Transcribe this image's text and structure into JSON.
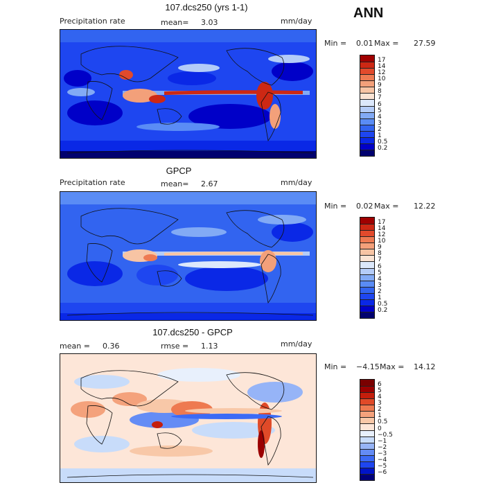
{
  "season": "ANN",
  "colors": {
    "abs_scale": [
      "#01016f",
      "#0000c8",
      "#0a28e6",
      "#1e46f0",
      "#3264f0",
      "#5a8cf5",
      "#82aaf5",
      "#b4ccf8",
      "#dce8fb",
      "#fbe4d4",
      "#f7c4a4",
      "#f3a07a",
      "#ee7a52",
      "#e24a2c",
      "#cd2814",
      "#a00000",
      "#780000"
    ],
    "diff_scale": [
      "#00007a",
      "#0014c8",
      "#1e46f0",
      "#3c6af5",
      "#648cf5",
      "#96b4f7",
      "#c8dcfa",
      "#e8f0fc",
      "#fde6d8",
      "#f8c8a8",
      "#f4a27c",
      "#ee7a50",
      "#e04a28",
      "#c41e0c",
      "#9b0000"
    ]
  },
  "panels": [
    {
      "id": "model",
      "title": "107.dcs250 (yrs 1-1)",
      "left_label": "Precipitation rate",
      "mean_label": "mean=",
      "mean_value": "3.03",
      "units": "mm/day",
      "min_label": "Min =",
      "min_value": "0.01",
      "max_label": "Max =",
      "max_value": "27.59",
      "colorbar_ticks": [
        "17",
        "14",
        "12",
        "10",
        "9",
        "8",
        "7",
        "6",
        "5",
        "4",
        "3",
        "2",
        "1",
        "0.5",
        "0.2"
      ]
    },
    {
      "id": "obs",
      "title": "GPCP",
      "left_label": "Precipitation rate",
      "mean_label": "mean=",
      "mean_value": "2.67",
      "units": "mm/day",
      "min_label": "Min =",
      "min_value": "0.02",
      "max_label": "Max =",
      "max_value": "12.22",
      "colorbar_ticks": [
        "17",
        "14",
        "12",
        "10",
        "9",
        "8",
        "7",
        "6",
        "5",
        "4",
        "3",
        "2",
        "1",
        "0.5",
        "0.2"
      ]
    },
    {
      "id": "diff",
      "title": "107.dcs250 - GPCP",
      "mean_label": "mean =",
      "mean_value": "0.36",
      "rmse_label": "rmse =",
      "rmse_value": "1.13",
      "units": "mm/day",
      "min_label": "Min =",
      "min_value": "−4.15",
      "max_label": "Max =",
      "max_value": "14.12",
      "colorbar_ticks": [
        "6",
        "5",
        "4",
        "3",
        "2",
        "1",
        "0.5",
        "0",
        "−0.5",
        "−1",
        "−2",
        "−3",
        "−4",
        "−5",
        "−6"
      ]
    }
  ]
}
